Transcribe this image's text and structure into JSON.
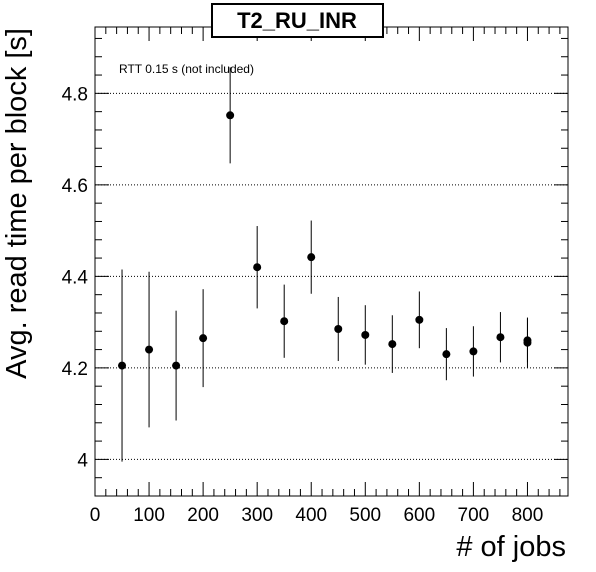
{
  "chart_data": {
    "type": "scatter",
    "title": "T2_RU_INR",
    "xlabel": "# of jobs",
    "ylabel": "Avg. read time per block [s]",
    "annotation": "RTT 0.15 s (not included)",
    "xlim": [
      0,
      875
    ],
    "ylim": [
      3.92,
      4.945
    ],
    "xticks": [
      0,
      100,
      200,
      300,
      400,
      500,
      600,
      700,
      800
    ],
    "yticks": [
      4.0,
      4.2,
      4.4,
      4.6,
      4.8
    ],
    "ytick_labels": [
      "4",
      "4.2",
      "4.4",
      "4.6",
      "4.8"
    ],
    "grid": "horizontal-dotted",
    "series": [
      {
        "x": [
          50,
          100,
          150,
          200,
          250,
          300,
          350,
          400,
          450,
          500,
          550,
          600,
          650,
          700,
          750,
          800,
          800
        ],
        "y": [
          4.205,
          4.24,
          4.205,
          4.265,
          4.752,
          4.42,
          4.302,
          4.442,
          4.285,
          4.272,
          4.252,
          4.305,
          4.23,
          4.236,
          4.267,
          4.255,
          4.26
        ],
        "err": [
          0.21,
          0.17,
          0.12,
          0.107,
          0.105,
          0.09,
          0.08,
          0.08,
          0.07,
          0.065,
          0.063,
          0.062,
          0.057,
          0.055,
          0.055,
          0.055,
          0.048
        ]
      }
    ]
  }
}
